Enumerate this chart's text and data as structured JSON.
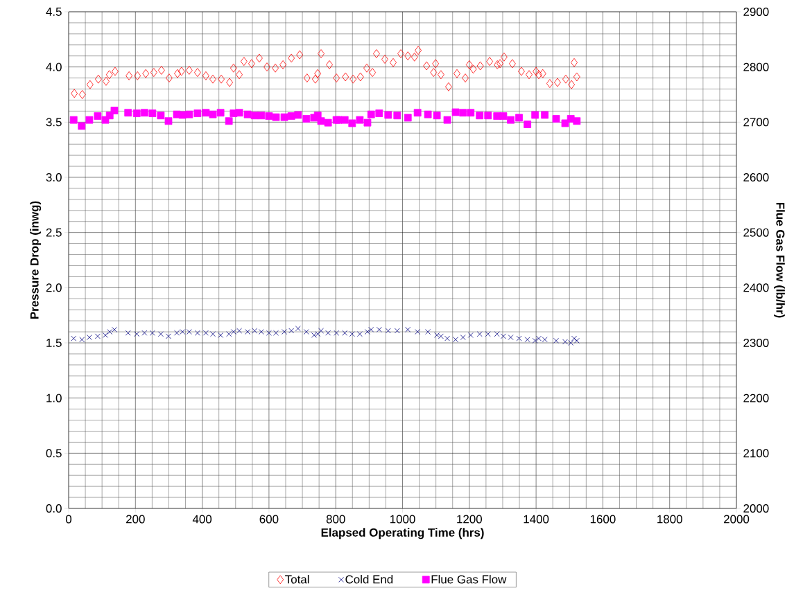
{
  "chart_data": {
    "type": "scatter",
    "xlabel": "Elapsed Operating Time (hrs)",
    "ylabel": "Pressure Drop (inwg)",
    "y2label": "Flue Gas Flow (lb/hr)",
    "xlim": [
      0,
      2000
    ],
    "xticks": [
      0,
      200,
      400,
      600,
      800,
      1000,
      1200,
      1400,
      1600,
      1800,
      2000
    ],
    "ylim": [
      0,
      4.5
    ],
    "yticks": [
      {
        "value": 0,
        "label": "0.0"
      },
      {
        "value": 0.5,
        "label": "0.5"
      },
      {
        "value": 1,
        "label": "1.0"
      },
      {
        "value": 1.5,
        "label": "1.5"
      },
      {
        "value": 2,
        "label": "2.0"
      },
      {
        "value": 2.5,
        "label": "2.5"
      },
      {
        "value": 3,
        "label": "3.0"
      },
      {
        "value": 3.5,
        "label": "3.5"
      },
      {
        "value": 4,
        "label": "4.0"
      },
      {
        "value": 4.5,
        "label": "4.5"
      }
    ],
    "y2lim": [
      2000,
      2900
    ],
    "y2ticks": [
      2000,
      2100,
      2200,
      2300,
      2400,
      2500,
      2600,
      2700,
      2800,
      2900
    ],
    "grid": true,
    "legend": "bottom",
    "series": [
      {
        "name": "Total",
        "color": "#ff0000",
        "marker": "diamond",
        "x": [
          17,
          41,
          64,
          89,
          112,
          122,
          139,
          181,
          206,
          231,
          255,
          278,
          301,
          326,
          338,
          361,
          386,
          411,
          432,
          457,
          482,
          494,
          511,
          525,
          548,
          571,
          594,
          619,
          642,
          667,
          692,
          714,
          739,
          746,
          756,
          781,
          802,
          829,
          852,
          874,
          893,
          910,
          922,
          947,
          972,
          995,
          1016,
          1036,
          1047,
          1072,
          1093,
          1099,
          1115,
          1138,
          1163,
          1188,
          1200,
          1212,
          1233,
          1261,
          1284,
          1292,
          1304,
          1329,
          1356,
          1379,
          1400,
          1408,
          1420,
          1441,
          1464,
          1489,
          1506,
          1514,
          1522
        ],
        "values": [
          3.76,
          3.75,
          3.84,
          3.89,
          3.87,
          3.93,
          3.96,
          3.92,
          3.92,
          3.94,
          3.95,
          3.97,
          3.9,
          3.94,
          3.96,
          3.97,
          3.95,
          3.92,
          3.89,
          3.89,
          3.86,
          3.99,
          3.93,
          4.05,
          4.03,
          4.08,
          4.0,
          3.99,
          4.02,
          4.08,
          4.11,
          3.9,
          3.89,
          3.94,
          4.12,
          4.02,
          3.9,
          3.91,
          3.89,
          3.91,
          3.99,
          3.95,
          4.12,
          4.07,
          4.04,
          4.12,
          4.1,
          4.09,
          4.15,
          4.01,
          3.95,
          4.03,
          3.93,
          3.82,
          3.94,
          3.9,
          4.02,
          3.98,
          4.01,
          4.05,
          4.02,
          4.03,
          4.09,
          4.03,
          3.96,
          3.93,
          3.96,
          3.93,
          3.94,
          3.85,
          3.86,
          3.89,
          3.84,
          4.04,
          3.91
        ]
      },
      {
        "name": "Cold End",
        "color": "#000080",
        "marker": "cross",
        "x": [
          15,
          40,
          62,
          87,
          110,
          123,
          137,
          178,
          204,
          227,
          251,
          276,
          299,
          324,
          341,
          361,
          386,
          411,
          432,
          455,
          480,
          494,
          511,
          536,
          557,
          577,
          600,
          621,
          646,
          667,
          687,
          712,
          735,
          746,
          756,
          777,
          802,
          827,
          849,
          872,
          895,
          906,
          930,
          957,
          984,
          1016,
          1045,
          1076,
          1103,
          1115,
          1134,
          1159,
          1181,
          1204,
          1231,
          1256,
          1283,
          1302,
          1324,
          1349,
          1374,
          1397,
          1408,
          1426,
          1460,
          1487,
          1504,
          1514,
          1522
        ],
        "values": [
          1.54,
          1.53,
          1.55,
          1.56,
          1.57,
          1.6,
          1.62,
          1.59,
          1.58,
          1.59,
          1.59,
          1.58,
          1.56,
          1.59,
          1.6,
          1.6,
          1.59,
          1.59,
          1.58,
          1.57,
          1.58,
          1.6,
          1.61,
          1.6,
          1.61,
          1.6,
          1.59,
          1.59,
          1.6,
          1.61,
          1.63,
          1.6,
          1.57,
          1.58,
          1.61,
          1.59,
          1.59,
          1.59,
          1.58,
          1.58,
          1.6,
          1.62,
          1.62,
          1.61,
          1.61,
          1.62,
          1.6,
          1.6,
          1.57,
          1.56,
          1.54,
          1.53,
          1.55,
          1.57,
          1.58,
          1.58,
          1.58,
          1.56,
          1.55,
          1.54,
          1.53,
          1.52,
          1.54,
          1.53,
          1.52,
          1.51,
          1.5,
          1.54,
          1.52
        ]
      },
      {
        "name": "Flue Gas Flow",
        "color": "#ff00ff",
        "marker": "square",
        "axis": "y2",
        "x": [
          15,
          39,
          62,
          87,
          110,
          123,
          137,
          178,
          204,
          227,
          251,
          276,
          299,
          324,
          341,
          361,
          386,
          411,
          432,
          455,
          480,
          494,
          511,
          536,
          557,
          577,
          600,
          621,
          646,
          667,
          687,
          712,
          735,
          746,
          756,
          777,
          802,
          808,
          827,
          849,
          872,
          895,
          906,
          930,
          957,
          984,
          1016,
          1045,
          1076,
          1103,
          1134,
          1159,
          1181,
          1204,
          1231,
          1256,
          1283,
          1302,
          1324,
          1349,
          1374,
          1397,
          1426,
          1460,
          1487,
          1504,
          1522
        ],
        "values": [
          2704,
          2693,
          2704,
          2711,
          2704,
          2712,
          2721,
          2717,
          2716,
          2717,
          2716,
          2712,
          2702,
          2714,
          2713,
          2714,
          2716,
          2717,
          2714,
          2717,
          2702,
          2716,
          2717,
          2714,
          2712,
          2712,
          2711,
          2709,
          2709,
          2711,
          2713,
          2706,
          2708,
          2712,
          2702,
          2699,
          2704,
          2704,
          2704,
          2698,
          2704,
          2699,
          2714,
          2716,
          2713,
          2712,
          2708,
          2717,
          2714,
          2712,
          2704,
          2718,
          2717,
          2717,
          2712,
          2712,
          2711,
          2711,
          2704,
          2708,
          2696,
          2713,
          2713,
          2706,
          2698,
          2706,
          2702
        ]
      }
    ]
  }
}
